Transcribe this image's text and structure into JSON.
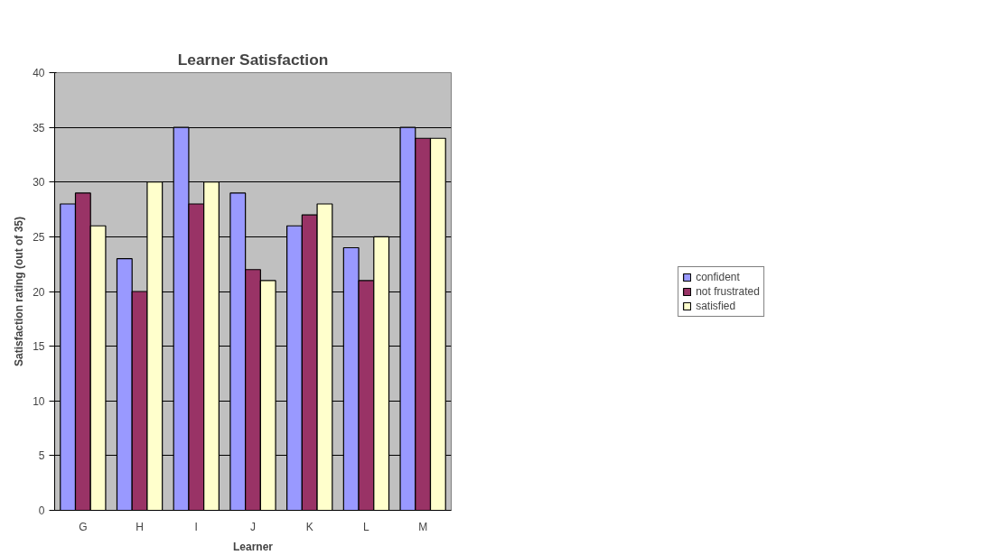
{
  "chart_data": {
    "type": "bar",
    "title": "Learner Satisfaction",
    "xlabel": "Learner",
    "ylabel": "Satisfaction rating (out of 35)",
    "categories": [
      "G",
      "H",
      "I",
      "J",
      "K",
      "L",
      "M"
    ],
    "series": [
      {
        "name": "confident",
        "color": "#9999ff",
        "values": [
          28,
          23,
          35,
          29,
          26,
          24,
          35
        ]
      },
      {
        "name": "not frustrated",
        "color": "#993366",
        "values": [
          29,
          20,
          28,
          22,
          27,
          21,
          34
        ]
      },
      {
        "name": "satisfied",
        "color": "#ffffcc",
        "values": [
          26,
          30,
          30,
          21,
          28,
          25,
          34
        ]
      }
    ],
    "ylim": [
      0,
      40
    ],
    "yticks": [
      0,
      5,
      10,
      15,
      20,
      25,
      30,
      35,
      40
    ],
    "grid": "y",
    "legend": "right"
  }
}
